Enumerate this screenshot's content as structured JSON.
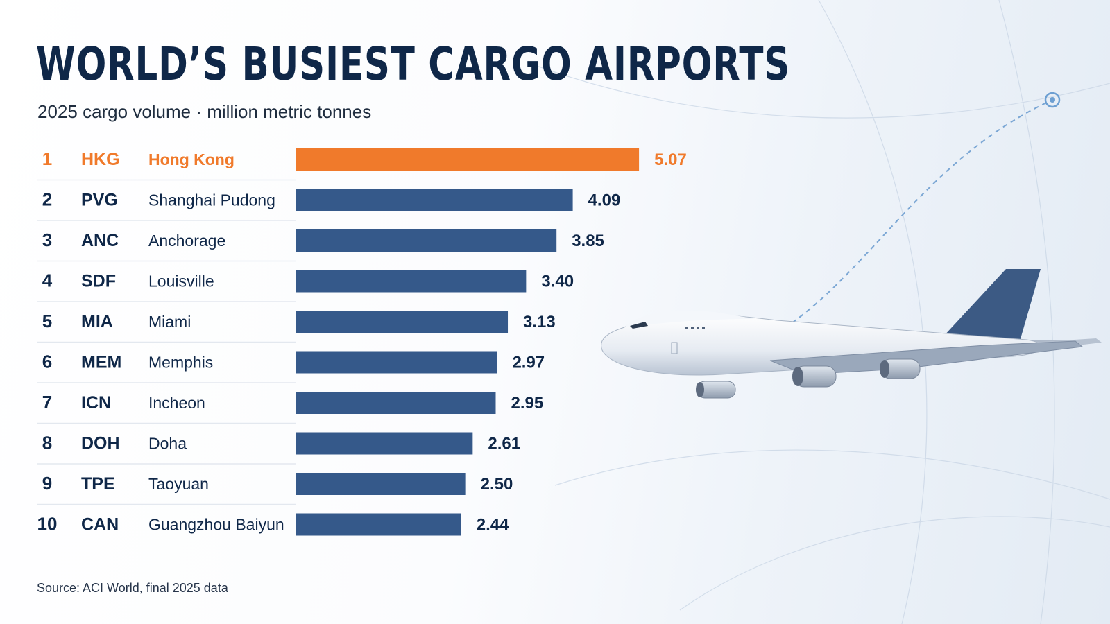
{
  "title": "WORLD’S BUSIEST CARGO AIRPORTS",
  "subtitle": "2025 cargo volume · million metric tonnes",
  "source": "Source: ACI World, final 2025 data",
  "colors": {
    "highlight": "#f07a2b",
    "bar": "#35598a",
    "text": "#0f2748",
    "divider": "#e3e8ef"
  },
  "chart_data": {
    "type": "bar",
    "orientation": "horizontal",
    "units": "million metric tonnes",
    "xlim": [
      0,
      5.5
    ],
    "grid": false,
    "highlight_index": 0,
    "ranks": [
      "1",
      "2",
      "3",
      "4",
      "5",
      "6",
      "7",
      "8",
      "9",
      "10"
    ],
    "codes": [
      "HKG",
      "PVG",
      "ANC",
      "SDF",
      "MIA",
      "MEM",
      "ICN",
      "DOH",
      "TPE",
      "CAN"
    ],
    "categories": [
      "Hong Kong",
      "Shanghai Pudong",
      "Anchorage",
      "Louisville",
      "Miami",
      "Memphis",
      "Incheon",
      "Doha",
      "Taoyuan",
      "Guangzhou Baiyun"
    ],
    "values": [
      5.07,
      4.09,
      3.85,
      3.4,
      3.13,
      2.97,
      2.95,
      2.61,
      2.5,
      2.44
    ],
    "value_labels": [
      "5.07",
      "4.09",
      "3.85",
      "3.40",
      "3.13",
      "2.97",
      "2.95",
      "2.61",
      "2.50",
      "2.44"
    ]
  }
}
